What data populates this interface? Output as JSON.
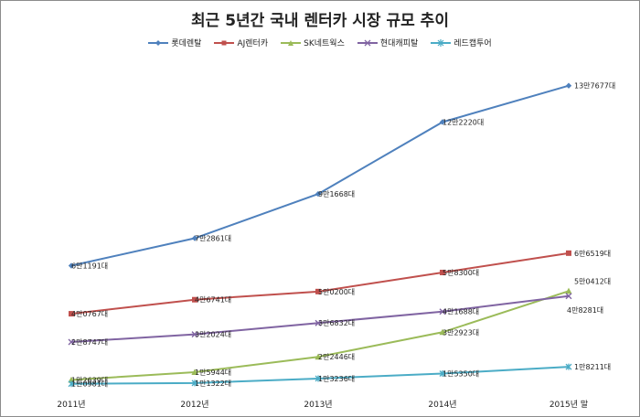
{
  "chart_data": {
    "type": "line",
    "title": "최근 5년간 국내 렌터카 시장 규모 추이",
    "xlabel": "",
    "ylabel": "",
    "categories": [
      "2011년",
      "2012년",
      "2013년",
      "2014년",
      "2015년 말"
    ],
    "ylim": [
      0,
      150000
    ],
    "grid": false,
    "legend_position": "top",
    "series": [
      {
        "name": "롯데렌탈",
        "color": "#4f81bd",
        "marker": "diamond",
        "values": [
          61191,
          72861,
          91668,
          122220,
          137677
        ],
        "labels": [
          "6만1191대",
          "7만2861대",
          "9만1668대",
          "12만2220대",
          "13만7677대"
        ]
      },
      {
        "name": "AJ렌터카",
        "color": "#c0504d",
        "marker": "square",
        "values": [
          40767,
          46741,
          50200,
          58300,
          66519
        ],
        "labels": [
          "4만0767대",
          "4만6741대",
          "5만0200대",
          "5만8300대",
          "6만6519대"
        ]
      },
      {
        "name": "SK네트웍스",
        "color": "#9bbb59",
        "marker": "triangle",
        "values": [
          12639,
          15944,
          22446,
          32923,
          50412
        ],
        "labels": [
          "1만2639대",
          "1만5944대",
          "2만2446대",
          "3만2923대",
          "5만0412대"
        ]
      },
      {
        "name": "현대캐피탈",
        "color": "#8064a2",
        "marker": "x",
        "values": [
          28747,
          32024,
          36832,
          41688,
          48281
        ],
        "labels": [
          "2만8747대",
          "3만2024대",
          "3만6832대",
          "4만1688대",
          "4만8281대"
        ]
      },
      {
        "name": "레드캡투어",
        "color": "#4bacc6",
        "marker": "star",
        "values": [
          10981,
          11322,
          13236,
          15350,
          18211
        ],
        "labels": [
          "1만0981대",
          "1만1322대",
          "1만3236대",
          "1만5350대",
          "1만8211대"
        ]
      }
    ]
  }
}
